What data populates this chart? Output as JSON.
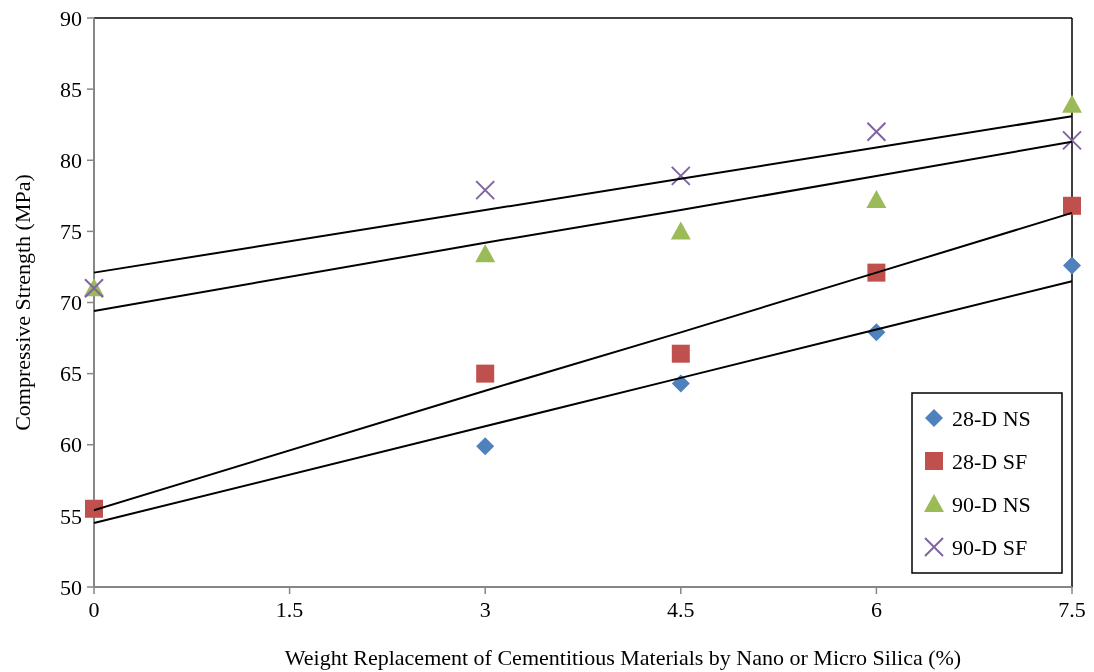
{
  "chart_data": {
    "type": "scatter",
    "xlabel": "Weight Replacement of Cementitious Materials by Nano or Micro Silica (%)",
    "ylabel": "Compressive Strength (MPa)",
    "x": [
      0,
      3,
      4.5,
      6,
      7.5
    ],
    "xlim": [
      0,
      7.5
    ],
    "xticks": [
      0,
      1.5,
      3,
      4.5,
      6,
      7.5
    ],
    "ylim": [
      50,
      90
    ],
    "yticks": [
      50,
      55,
      60,
      65,
      70,
      75,
      80,
      85,
      90
    ],
    "grid": false,
    "legend": "bottom right",
    "series": [
      {
        "name": "28-D NS",
        "color": "#4f81bd",
        "marker": "diamond",
        "values": [
          null,
          59.9,
          64.3,
          67.9,
          72.6
        ]
      },
      {
        "name": "28-D SF",
        "color": "#c0504d",
        "marker": "square",
        "values": [
          55.5,
          65.0,
          66.4,
          72.1,
          76.8
        ]
      },
      {
        "name": "90-D NS",
        "color": "#9bbb59",
        "marker": "triangle",
        "values": [
          71.0,
          73.4,
          75.0,
          77.2,
          83.9
        ]
      },
      {
        "name": "90-D SF",
        "color": "#8064a2",
        "marker": "cross",
        "values": [
          71.0,
          77.9,
          78.9,
          82.0,
          81.4
        ]
      },
      {
        "type": "line",
        "color": "#000000",
        "marker": "none",
        "values": [
          72.1,
          76.5,
          78.7,
          80.9,
          83.1
        ]
      },
      {
        "type": "line",
        "color": "#000000",
        "marker": "none",
        "values": [
          69.4,
          74.2,
          76.5,
          78.9,
          81.3
        ]
      },
      {
        "type": "line",
        "color": "#000000",
        "marker": "none",
        "values": [
          55.4,
          63.8,
          67.9,
          72.1,
          76.3
        ]
      },
      {
        "type": "line",
        "color": "#000000",
        "marker": "none",
        "values": [
          54.5,
          61.3,
          64.7,
          68.1,
          71.5
        ]
      }
    ]
  }
}
